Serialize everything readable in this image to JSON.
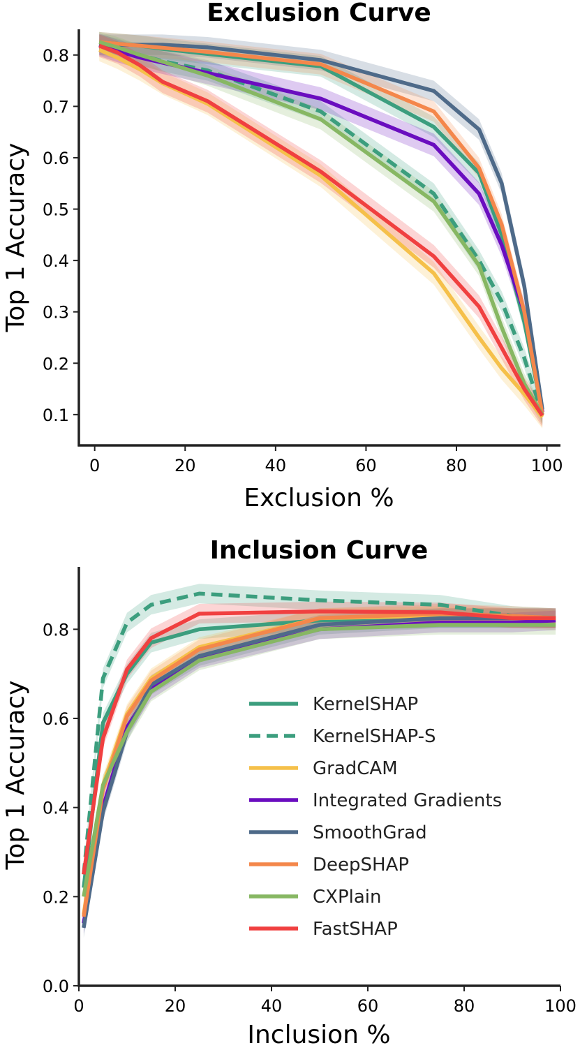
{
  "colors": {
    "KernelSHAP": "#3c9e7e",
    "KernelSHAP-S": "#3c9e7e",
    "GradCAM": "#f5c04a",
    "Integrated Gradients": "#6a0dbf",
    "SmoothGrad": "#4e6a89",
    "DeepSHAP": "#f4874b",
    "CXPlain": "#87b763",
    "FastSHAP": "#f04040"
  },
  "legend": [
    "KernelSHAP",
    "KernelSHAP-S",
    "GradCAM",
    "Integrated Gradients",
    "SmoothGrad",
    "DeepSHAP",
    "CXPlain",
    "FastSHAP"
  ],
  "chart_data": [
    {
      "type": "line",
      "title": "Exclusion Curve",
      "xlabel": "Exclusion %",
      "ylabel": "Top 1 Accuracy",
      "xlim": [
        -3.5,
        103
      ],
      "ylim": [
        0.04,
        0.85
      ],
      "xticks": [
        "0",
        "20",
        "40",
        "60",
        "80",
        "100"
      ],
      "yticks": [
        "0.1",
        "0.2",
        "0.3",
        "0.4",
        "0.5",
        "0.6",
        "0.7",
        "0.8"
      ],
      "x": [
        1,
        5,
        10,
        15,
        25,
        50,
        75,
        85,
        90,
        95,
        99
      ],
      "series": [
        {
          "name": "KernelSHAP",
          "style": "solid",
          "band": 0.02,
          "values": [
            0.825,
            0.822,
            0.818,
            0.812,
            0.802,
            0.778,
            0.66,
            0.57,
            0.45,
            0.28,
            0.105
          ]
        },
        {
          "name": "KernelSHAP-S",
          "style": "dashed",
          "band": 0.02,
          "values": [
            0.82,
            0.812,
            0.8,
            0.788,
            0.77,
            0.69,
            0.53,
            0.4,
            0.32,
            0.21,
            0.1
          ]
        },
        {
          "name": "GradCAM",
          "style": "solid",
          "band": 0.022,
          "values": [
            0.81,
            0.795,
            0.772,
            0.745,
            0.705,
            0.565,
            0.375,
            0.25,
            0.19,
            0.14,
            0.095
          ]
        },
        {
          "name": "Integrated Gradients",
          "style": "solid",
          "band": 0.022,
          "values": [
            0.82,
            0.808,
            0.795,
            0.785,
            0.765,
            0.715,
            0.625,
            0.53,
            0.43,
            0.3,
            0.105
          ]
        },
        {
          "name": "SmoothGrad",
          "style": "solid",
          "band": 0.02,
          "values": [
            0.82,
            0.82,
            0.82,
            0.82,
            0.815,
            0.79,
            0.73,
            0.655,
            0.55,
            0.35,
            0.11
          ]
        },
        {
          "name": "DeepSHAP",
          "style": "solid",
          "band": 0.02,
          "values": [
            0.825,
            0.822,
            0.818,
            0.814,
            0.806,
            0.782,
            0.69,
            0.58,
            0.47,
            0.3,
            0.1
          ]
        },
        {
          "name": "CXPlain",
          "style": "solid",
          "band": 0.02,
          "values": [
            0.825,
            0.815,
            0.8,
            0.787,
            0.76,
            0.675,
            0.515,
            0.39,
            0.27,
            0.16,
            0.1
          ]
        },
        {
          "name": "FastSHAP",
          "style": "solid",
          "band": 0.022,
          "values": [
            0.818,
            0.805,
            0.78,
            0.748,
            0.71,
            0.573,
            0.408,
            0.31,
            0.23,
            0.15,
            0.098
          ]
        }
      ]
    },
    {
      "type": "line",
      "title": "Inclusion Curve",
      "xlabel": "Inclusion %",
      "ylabel": "Top 1 Accuracy",
      "xlim": [
        0,
        100
      ],
      "ylim": [
        0,
        0.94
      ],
      "xticks": [
        "0",
        "20",
        "40",
        "60",
        "80",
        "100"
      ],
      "yticks": [
        "0.0",
        "0.2",
        "0.4",
        "0.6",
        "0.8"
      ],
      "legend_position": "center-right",
      "x": [
        1,
        5,
        10,
        15,
        25,
        50,
        75,
        90,
        99
      ],
      "series": [
        {
          "name": "KernelSHAP",
          "style": "solid",
          "band": 0.022,
          "values": [
            0.22,
            0.59,
            0.7,
            0.77,
            0.8,
            0.82,
            0.825,
            0.825,
            0.825
          ]
        },
        {
          "name": "KernelSHAP-S",
          "style": "dashed",
          "band": 0.022,
          "values": [
            0.25,
            0.69,
            0.815,
            0.855,
            0.88,
            0.865,
            0.855,
            0.83,
            0.825
          ]
        },
        {
          "name": "GradCAM",
          "style": "solid",
          "band": 0.022,
          "values": [
            0.16,
            0.45,
            0.61,
            0.69,
            0.76,
            0.825,
            0.83,
            0.825,
            0.82
          ]
        },
        {
          "name": "Integrated Gradients",
          "style": "solid",
          "band": 0.022,
          "values": [
            0.14,
            0.4,
            0.58,
            0.665,
            0.735,
            0.8,
            0.815,
            0.815,
            0.82
          ]
        },
        {
          "name": "SmoothGrad",
          "style": "solid",
          "band": 0.022,
          "values": [
            0.13,
            0.39,
            0.57,
            0.675,
            0.74,
            0.81,
            0.825,
            0.825,
            0.825
          ]
        },
        {
          "name": "DeepSHAP",
          "style": "solid",
          "band": 0.022,
          "values": [
            0.155,
            0.44,
            0.605,
            0.685,
            0.755,
            0.825,
            0.835,
            0.83,
            0.825
          ]
        },
        {
          "name": "CXPlain",
          "style": "solid",
          "band": 0.022,
          "values": [
            0.2,
            0.45,
            0.57,
            0.66,
            0.73,
            0.8,
            0.81,
            0.81,
            0.81
          ]
        },
        {
          "name": "FastSHAP",
          "style": "solid",
          "band": 0.022,
          "values": [
            0.25,
            0.555,
            0.71,
            0.78,
            0.835,
            0.84,
            0.838,
            0.825,
            0.825
          ]
        }
      ]
    }
  ]
}
